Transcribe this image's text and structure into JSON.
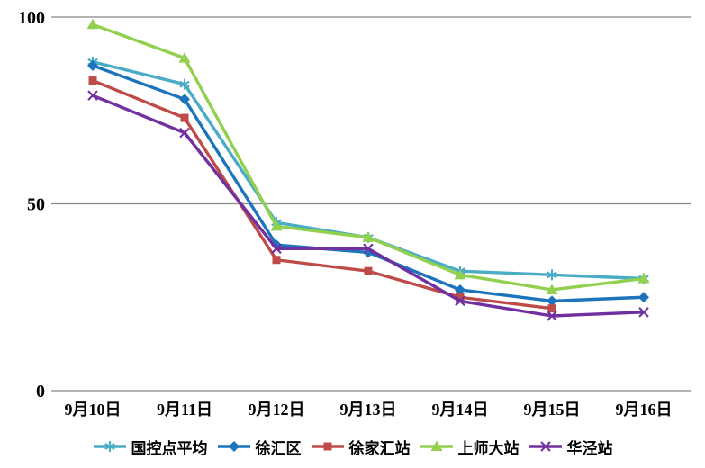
{
  "chart_data": {
    "type": "line",
    "title": "",
    "categories": [
      "9月10日",
      "9月11日",
      "9月12日",
      "9月13日",
      "9月14日",
      "9月15日",
      "9月16日"
    ],
    "series": [
      {
        "name": "国控点平均",
        "marker": "asterisk",
        "color": "#4BACC6",
        "values": [
          88,
          82,
          45,
          41,
          32,
          31,
          30
        ]
      },
      {
        "name": "徐汇区",
        "marker": "diamond",
        "color": "#1C75BC",
        "values": [
          87,
          78,
          39,
          37,
          27,
          24,
          25
        ]
      },
      {
        "name": "徐家汇站",
        "marker": "square",
        "color": "#BE4B48",
        "values": [
          83,
          73,
          35,
          32,
          25,
          22,
          null
        ]
      },
      {
        "name": "上师大站",
        "marker": "triangle",
        "color": "#92D050",
        "values": [
          98,
          89,
          44,
          41,
          31,
          27,
          30
        ]
      },
      {
        "name": "华泾站",
        "marker": "x",
        "color": "#7030A0",
        "values": [
          79,
          69,
          38,
          38,
          24,
          20,
          21
        ]
      }
    ],
    "ylim": [
      0,
      100
    ],
    "yticks": [
      0,
      50,
      100
    ],
    "ytick_labels": [
      "0",
      "50",
      "100"
    ],
    "grid": "horizontal",
    "gridline_color": "#898989",
    "label_color": "#000000",
    "legend_position": "bottom"
  }
}
